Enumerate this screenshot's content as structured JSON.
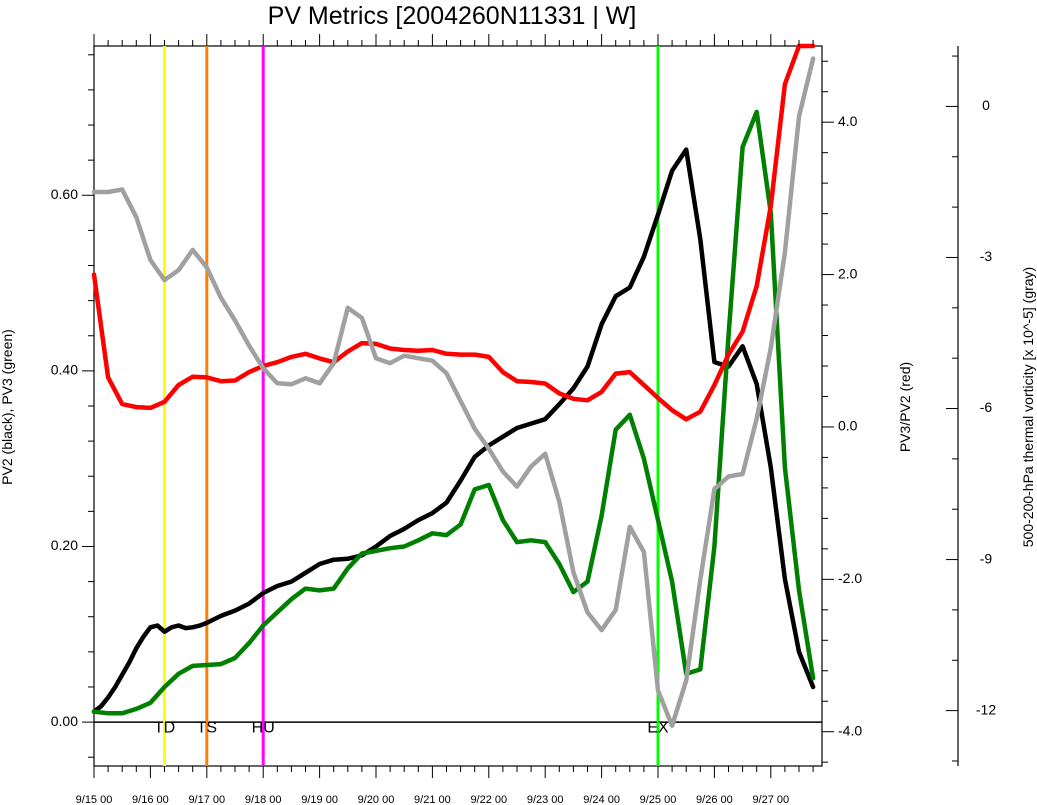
{
  "chart_data": {
    "type": "line",
    "title": "PV Metrics [2004260N11331 | W]",
    "axes": {
      "x": {
        "range": [
          0,
          12.8
        ],
        "tick_labels": [
          "9/15 00",
          "9/16 00",
          "9/17 00",
          "9/18 00",
          "9/19 00",
          "9/20 00",
          "9/21 00",
          "9/22 00",
          "9/23 00",
          "9/24 00",
          "9/25 00",
          "9/26 00",
          "9/27 00"
        ]
      },
      "y_left": {
        "label": "PV2 (black), PV3 (green)",
        "range": [
          -0.05,
          0.77
        ],
        "ticks": [
          0.0,
          0.2,
          0.4,
          0.6
        ],
        "tick_labels": [
          "0.00",
          "0.20",
          "0.40",
          "0.60"
        ]
      },
      "y_right": {
        "label": "PV3/PV2 (red)",
        "range": [
          -4.45,
          5.0
        ],
        "ticks": [
          -4.0,
          -2.0,
          0.0,
          2.0,
          4.0
        ],
        "tick_labels": [
          "-4.0",
          "-2.0",
          "0.0",
          "2.0",
          "4.0"
        ]
      },
      "y_far_right": {
        "label": "500-200-hPa thermal vorticity [x 10^-5] (gray)",
        "range": [
          -13.1,
          1.2
        ],
        "ticks": [
          -12,
          -9,
          -6,
          -3,
          0
        ],
        "tick_labels": [
          "-12",
          "-9",
          "-6",
          "-3",
          "0"
        ]
      }
    },
    "stages": [
      {
        "label": "TD",
        "x": 1.25,
        "color": "#ffff00"
      },
      {
        "label": "TS",
        "x": 2.0,
        "color": "#ff8000"
      },
      {
        "label": "HU",
        "x": 3.0,
        "color": "#ff00ff"
      },
      {
        "label": "EX",
        "x": 10.0,
        "color": "#00ff00"
      }
    ],
    "series": [
      {
        "color": "#000000",
        "axis": "y_left",
        "x": [
          0,
          0.125,
          0.25,
          0.375,
          0.5,
          0.625,
          0.75,
          0.875,
          1,
          1.125,
          1.25,
          1.375,
          1.5,
          1.625,
          1.75,
          1.875,
          2,
          2.25,
          2.5,
          2.75,
          3,
          3.25,
          3.5,
          3.75,
          4,
          4.25,
          4.5,
          4.75,
          5,
          5.25,
          5.5,
          5.75,
          6,
          6.25,
          6.5,
          6.75,
          7,
          7.25,
          7.5,
          7.75,
          8,
          8.25,
          8.5,
          8.75,
          9,
          9.25,
          9.5,
          9.75,
          10,
          10.25,
          10.5,
          10.75,
          11,
          11.25,
          11.5,
          11.75,
          12,
          12.25,
          12.5,
          12.75
        ],
        "y": [
          0.012,
          0.018,
          0.028,
          0.04,
          0.054,
          0.068,
          0.084,
          0.097,
          0.108,
          0.11,
          0.103,
          0.108,
          0.11,
          0.107,
          0.108,
          0.11,
          0.113,
          0.121,
          0.127,
          0.135,
          0.147,
          0.155,
          0.16,
          0.17,
          0.18,
          0.185,
          0.186,
          0.19,
          0.2,
          0.212,
          0.22,
          0.23,
          0.238,
          0.25,
          0.275,
          0.302,
          0.315,
          0.325,
          0.335,
          0.34,
          0.345,
          0.362,
          0.38,
          0.405,
          0.453,
          0.485,
          0.495,
          0.53,
          0.578,
          0.628,
          0.652,
          0.55,
          0.41,
          0.405,
          0.428,
          0.385,
          0.29,
          0.163,
          0.08,
          0.04
        ]
      },
      {
        "color": "#008000",
        "axis": "y_left",
        "x": [
          0,
          0.25,
          0.5,
          0.75,
          1,
          1.25,
          1.5,
          1.75,
          2,
          2.25,
          2.5,
          2.75,
          3,
          3.25,
          3.5,
          3.75,
          4,
          4.25,
          4.5,
          4.75,
          5,
          5.25,
          5.5,
          5.75,
          6,
          6.25,
          6.5,
          6.75,
          7,
          7.25,
          7.5,
          7.75,
          8,
          8.25,
          8.5,
          8.75,
          9,
          9.25,
          9.5,
          9.75,
          10,
          10.25,
          10.5,
          10.75,
          11,
          11.25,
          11.5,
          11.75,
          12,
          12.25,
          12.5,
          12.75
        ],
        "y": [
          0.012,
          0.01,
          0.01,
          0.015,
          0.022,
          0.04,
          0.055,
          0.064,
          0.065,
          0.066,
          0.073,
          0.09,
          0.11,
          0.125,
          0.14,
          0.152,
          0.15,
          0.152,
          0.175,
          0.192,
          0.195,
          0.198,
          0.2,
          0.207,
          0.215,
          0.213,
          0.225,
          0.265,
          0.27,
          0.23,
          0.205,
          0.207,
          0.205,
          0.18,
          0.148,
          0.16,
          0.235,
          0.333,
          0.35,
          0.3,
          0.23,
          0.16,
          0.055,
          0.06,
          0.2,
          0.44,
          0.655,
          0.695,
          0.58,
          0.29,
          0.15,
          0.05
        ]
      },
      {
        "color": "#ff0000",
        "axis": "y_right",
        "x": [
          0,
          0.25,
          0.5,
          0.75,
          1,
          1.25,
          1.5,
          1.75,
          2,
          2.25,
          2.5,
          2.75,
          3,
          3.25,
          3.5,
          3.75,
          4,
          4.25,
          4.5,
          4.75,
          5,
          5.25,
          5.5,
          5.75,
          6,
          6.25,
          6.5,
          6.75,
          7,
          7.25,
          7.5,
          7.75,
          8,
          8.25,
          8.5,
          8.75,
          9,
          9.25,
          9.5,
          9.75,
          10,
          10.25,
          10.5,
          10.75,
          11,
          11.25,
          11.5,
          11.75,
          12,
          12.25,
          12.5,
          12.75
        ],
        "y": [
          2.0,
          0.65,
          0.3,
          0.26,
          0.25,
          0.33,
          0.55,
          0.66,
          0.65,
          0.6,
          0.61,
          0.72,
          0.8,
          0.85,
          0.92,
          0.96,
          0.9,
          0.85,
          0.99,
          1.1,
          1.09,
          1.03,
          1.01,
          1.0,
          1.01,
          0.96,
          0.95,
          0.95,
          0.92,
          0.72,
          0.6,
          0.59,
          0.57,
          0.44,
          0.37,
          0.35,
          0.46,
          0.7,
          0.72,
          0.55,
          0.38,
          0.22,
          0.1,
          0.2,
          0.55,
          0.95,
          1.25,
          1.85,
          2.9,
          4.5,
          5.0,
          5.0
        ]
      },
      {
        "color": "#a0a0a0",
        "axis": "y_far_right",
        "x": [
          0,
          0.25,
          0.5,
          0.75,
          1,
          1.25,
          1.5,
          1.75,
          2,
          2.25,
          2.5,
          2.75,
          3,
          3.25,
          3.5,
          3.75,
          4,
          4.25,
          4.5,
          4.75,
          5,
          5.25,
          5.5,
          5.75,
          6,
          6.25,
          6.5,
          6.75,
          7,
          7.25,
          7.5,
          7.75,
          8,
          8.25,
          8.5,
          8.75,
          9,
          9.25,
          9.5,
          9.75,
          10,
          10.25,
          10.5,
          10.75,
          11,
          11.25,
          11.5,
          11.75,
          12,
          12.25,
          12.5,
          12.75
        ],
        "y": [
          -1.7,
          -1.7,
          -1.65,
          -2.2,
          -3.05,
          -3.45,
          -3.25,
          -2.85,
          -3.2,
          -3.8,
          -4.25,
          -4.75,
          -5.2,
          -5.5,
          -5.52,
          -5.4,
          -5.5,
          -5.1,
          -4.0,
          -4.2,
          -5.0,
          -5.1,
          -4.95,
          -5.0,
          -5.05,
          -5.3,
          -5.85,
          -6.4,
          -6.8,
          -7.25,
          -7.55,
          -7.15,
          -6.9,
          -7.85,
          -9.25,
          -10.05,
          -10.4,
          -10.0,
          -8.35,
          -8.85,
          -11.6,
          -12.3,
          -11.4,
          -9.4,
          -7.6,
          -7.35,
          -7.3,
          -6.2,
          -4.8,
          -2.9,
          -0.2,
          0.95
        ]
      }
    ]
  }
}
